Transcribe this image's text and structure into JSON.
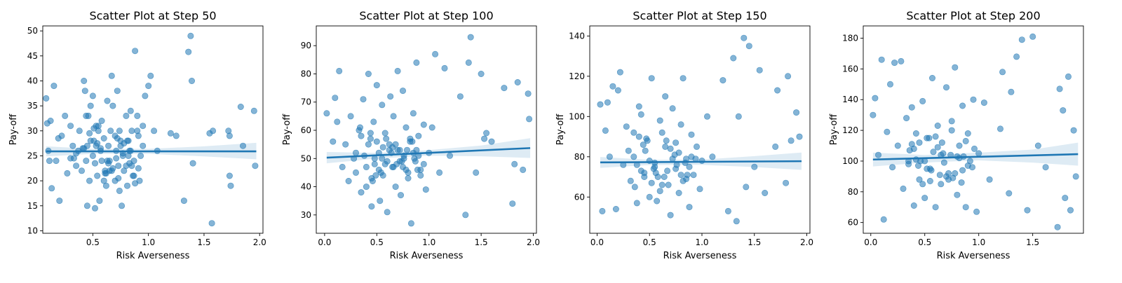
{
  "chart_data": [
    {
      "type": "scatter",
      "title": "Scatter Plot at Step 50",
      "xlabel": "Risk Averseness",
      "ylabel": "Pay-off",
      "xlim": [
        0.05,
        2.03
      ],
      "ylim": [
        9.5,
        51
      ],
      "xticks": [
        0.5,
        1.0,
        1.5,
        2.0
      ],
      "xtick_labels": [
        "0.5",
        "1.0",
        "1.5",
        "2.0"
      ],
      "yticks": [
        10,
        15,
        20,
        25,
        30,
        35,
        40,
        45,
        50
      ],
      "ytick_labels": [
        "10",
        "15",
        "20",
        "25",
        "30",
        "35",
        "40",
        "45",
        "50"
      ],
      "regression": {
        "x": [
          0.08,
          1.97
        ],
        "y": [
          25.9,
          25.9
        ]
      },
      "ci_band": {
        "x": [
          0.08,
          0.5,
          1.0,
          1.5,
          1.97
        ],
        "lower": [
          24.9,
          25.4,
          25.4,
          24.9,
          24.3
        ],
        "upper": [
          26.9,
          26.4,
          26.4,
          26.9,
          27.6
        ]
      },
      "points": {
        "x": [
          0.08,
          0.09,
          0.1,
          0.11,
          0.12,
          0.13,
          0.15,
          0.17,
          0.19,
          0.2,
          0.22,
          0.25,
          0.27,
          0.3,
          0.32,
          0.35,
          0.37,
          0.38,
          0.4,
          0.42,
          0.43,
          0.44,
          0.45,
          0.46,
          0.47,
          0.48,
          0.5,
          0.5,
          0.51,
          0.52,
          0.53,
          0.54,
          0.55,
          0.56,
          0.57,
          0.58,
          0.6,
          0.61,
          0.62,
          0.63,
          0.64,
          0.65,
          0.66,
          0.67,
          0.68,
          0.7,
          0.71,
          0.72,
          0.73,
          0.74,
          0.75,
          0.76,
          0.77,
          0.78,
          0.8,
          0.81,
          0.82,
          0.83,
          0.84,
          0.85,
          0.86,
          0.87,
          0.88,
          0.9,
          0.91,
          0.92,
          0.95,
          0.97,
          1.0,
          1.02,
          1.05,
          1.08,
          1.2,
          1.25,
          1.32,
          1.36,
          1.38,
          1.39,
          1.4,
          1.55,
          1.57,
          1.58,
          1.72,
          1.73,
          1.73,
          1.74,
          1.83,
          1.85,
          1.95,
          1.96,
          0.3,
          0.45,
          0.55,
          0.65,
          0.75,
          0.85,
          0.95,
          0.35,
          0.6,
          0.7,
          0.8,
          0.9,
          0.42,
          0.52,
          0.62,
          0.72,
          0.82,
          0.48,
          0.58,
          0.68,
          0.78,
          0.88,
          0.33,
          0.47,
          0.57,
          0.67,
          0.77,
          0.87,
          0.53,
          0.63,
          0.73,
          0.83,
          0.93,
          0.41,
          0.51,
          0.61,
          0.71,
          0.81,
          0.91,
          0.44,
          0.54,
          0.64,
          0.74,
          0.84
        ],
        "y": [
          36.5,
          31.5,
          26.0,
          24.0,
          32.0,
          18.5,
          39.0,
          24.0,
          28.5,
          16.0,
          29.0,
          33.0,
          21.5,
          31.0,
          27.0,
          23.0,
          26.0,
          30.0,
          22.0,
          40.0,
          38.0,
          24.0,
          15.0,
          33.0,
          20.0,
          35.0,
          37.0,
          25.0,
          28.0,
          14.5,
          31.0,
          21.0,
          30.0,
          16.0,
          26.0,
          32.0,
          28.5,
          22.0,
          19.0,
          36.0,
          27.0,
          24.0,
          30.0,
          41.0,
          35.0,
          20.0,
          26.0,
          38.0,
          23.0,
          30.0,
          27.0,
          15.0,
          25.0,
          22.0,
          33.0,
          19.0,
          28.0,
          26.0,
          34.0,
          30.0,
          21.0,
          24.0,
          46.0,
          33.0,
          29.0,
          20.0,
          31.0,
          37.0,
          39.0,
          41.0,
          30.0,
          26.0,
          29.5,
          29.0,
          16.0,
          45.8,
          49.0,
          40.0,
          23.5,
          29.5,
          11.5,
          30.0,
          30.0,
          29.0,
          21.0,
          19.0,
          34.8,
          27.0,
          34.0,
          23.0,
          24.5,
          27.0,
          31.0,
          22.0,
          28.0,
          23.0,
          27.0,
          25.5,
          20.0,
          29.0,
          23.0,
          30.0,
          26.5,
          23.5,
          21.5,
          28.5,
          25.0,
          28.0,
          24.0,
          22.5,
          27.5,
          19.5,
          24.5,
          29.5,
          26.5,
          22.0,
          25.5,
          21.0,
          27.0,
          24.0,
          20.5,
          23.5,
          25.0,
          26.5,
          30.5,
          21.5,
          24.5,
          28.0,
          22.5,
          33.0,
          27.5,
          23.5,
          18.0,
          26.0
        ]
      }
    },
    {
      "type": "scatter",
      "title": "Scatter Plot at Step 100",
      "xlabel": "Risk Averseness",
      "ylabel": "Pay-off",
      "xlim": [
        -0.08,
        2.03
      ],
      "ylim": [
        23.5,
        97
      ],
      "xticks": [
        0.0,
        0.5,
        1.0,
        1.5,
        2.0
      ],
      "xtick_labels": [
        "0.0",
        "0.5",
        "1.0",
        "1.5",
        "2.0"
      ],
      "yticks": [
        30,
        40,
        50,
        60,
        70,
        80,
        90
      ],
      "ytick_labels": [
        "30",
        "40",
        "50",
        "60",
        "70",
        "80",
        "90"
      ],
      "regression": {
        "x": [
          0.02,
          1.97
        ],
        "y": [
          50.3,
          53.7
        ]
      },
      "ci_band": {
        "x": [
          0.02,
          0.5,
          1.0,
          1.5,
          1.97
        ],
        "lower": [
          48.3,
          50.0,
          51.0,
          50.8,
          50.2
        ],
        "upper": [
          52.3,
          52.0,
          53.0,
          54.6,
          57.2
        ]
      },
      "points": {
        "x": [
          0.02,
          0.08,
          0.1,
          0.12,
          0.14,
          0.17,
          0.2,
          0.23,
          0.25,
          0.28,
          0.3,
          0.33,
          0.35,
          0.37,
          0.4,
          0.42,
          0.44,
          0.45,
          0.47,
          0.48,
          0.5,
          0.52,
          0.53,
          0.55,
          0.56,
          0.58,
          0.6,
          0.62,
          0.63,
          0.65,
          0.66,
          0.68,
          0.7,
          0.72,
          0.73,
          0.75,
          0.76,
          0.78,
          0.8,
          0.82,
          0.83,
          0.85,
          0.87,
          0.88,
          0.9,
          0.92,
          0.95,
          0.97,
          1.0,
          1.03,
          1.06,
          1.1,
          1.15,
          1.2,
          1.3,
          1.35,
          1.38,
          1.4,
          1.45,
          1.5,
          1.53,
          1.55,
          1.6,
          1.72,
          1.8,
          1.82,
          1.85,
          1.9,
          1.95,
          1.96,
          0.3,
          0.4,
          0.5,
          0.6,
          0.7,
          0.8,
          0.9,
          0.35,
          0.45,
          0.55,
          0.65,
          0.75,
          0.85,
          0.95,
          0.42,
          0.52,
          0.62,
          0.72,
          0.82,
          0.92,
          0.38,
          0.48,
          0.58,
          0.68,
          0.78,
          0.88,
          0.44,
          0.54,
          0.64,
          0.74,
          0.84,
          0.46,
          0.56,
          0.66,
          0.76,
          0.86,
          0.34,
          0.49,
          0.59,
          0.69,
          0.79,
          0.89
        ],
        "y": [
          66.0,
          56.0,
          71.5,
          63.0,
          81.0,
          47.0,
          55.0,
          42.0,
          65.0,
          50.0,
          45.0,
          60.0,
          38.0,
          71.0,
          40.0,
          80.0,
          57.0,
          33.0,
          63.0,
          48.0,
          76.0,
          52.0,
          35.0,
          69.0,
          44.0,
          59.0,
          31.0,
          55.0,
          72.0,
          47.0,
          65.0,
          40.0,
          81.0,
          53.0,
          37.0,
          74.0,
          50.0,
          61.0,
          43.0,
          56.0,
          27.0,
          66.0,
          49.0,
          84.0,
          58.0,
          46.0,
          62.0,
          39.0,
          52.0,
          61.0,
          87.0,
          45.0,
          82.0,
          51.0,
          72.0,
          30.0,
          84.0,
          93.0,
          45.0,
          80.0,
          57.0,
          59.0,
          56.0,
          75.0,
          34.0,
          48.0,
          77.0,
          46.0,
          73.0,
          64.0,
          52.0,
          47.0,
          56.0,
          49.0,
          53.0,
          45.0,
          51.0,
          58.0,
          43.0,
          50.0,
          54.0,
          47.0,
          52.0,
          48.0,
          55.0,
          46.0,
          53.0,
          49.0,
          57.0,
          44.0,
          51.0,
          50.0,
          48.0,
          55.0,
          46.0,
          53.0,
          59.0,
          45.0,
          52.0,
          49.0,
          56.0,
          42.0,
          54.0,
          47.0,
          51.0,
          50.0,
          61.0,
          44.0,
          57.0,
          48.0,
          53.0,
          46.0
        ]
      }
    },
    {
      "type": "scatter",
      "title": "Scatter Plot at Step 150",
      "xlabel": "Risk Averseness",
      "ylabel": "Pay-off",
      "xlim": [
        -0.07,
        2.03
      ],
      "ylim": [
        42,
        145
      ],
      "xticks": [
        0.0,
        0.5,
        1.0,
        1.5,
        2.0
      ],
      "xtick_labels": [
        "0.0",
        "0.5",
        "1.0",
        "1.5",
        "2.0"
      ],
      "yticks": [
        60,
        80,
        100,
        120,
        140
      ],
      "ytick_labels": [
        "60",
        "80",
        "100",
        "120",
        "140"
      ],
      "regression": {
        "x": [
          0.03,
          1.95
        ],
        "y": [
          77.2,
          77.8
        ]
      },
      "ci_band": {
        "x": [
          0.03,
          0.5,
          1.0,
          1.5,
          1.95
        ],
        "lower": [
          74.5,
          75.9,
          76.0,
          74.9,
          73.5
        ],
        "upper": [
          79.9,
          78.5,
          78.6,
          80.3,
          82.1
        ]
      },
      "points": {
        "x": [
          0.03,
          0.05,
          0.08,
          0.1,
          0.12,
          0.15,
          0.18,
          0.2,
          0.22,
          0.25,
          0.28,
          0.3,
          0.32,
          0.35,
          0.38,
          0.4,
          0.42,
          0.45,
          0.47,
          0.5,
          0.52,
          0.55,
          0.57,
          0.6,
          0.62,
          0.65,
          0.67,
          0.7,
          0.72,
          0.75,
          0.78,
          0.8,
          0.82,
          0.85,
          0.88,
          0.9,
          0.92,
          0.95,
          0.98,
          1.0,
          1.05,
          1.1,
          1.2,
          1.25,
          1.3,
          1.33,
          1.35,
          1.4,
          1.42,
          1.45,
          1.5,
          1.55,
          1.6,
          1.7,
          1.72,
          1.8,
          1.82,
          1.85,
          1.9,
          1.93,
          0.35,
          0.45,
          0.55,
          0.65,
          0.75,
          0.85,
          0.4,
          0.5,
          0.6,
          0.7,
          0.8,
          0.9,
          0.38,
          0.48,
          0.58,
          0.68,
          0.78,
          0.88,
          0.42,
          0.52,
          0.62,
          0.72,
          0.82,
          0.44,
          0.54,
          0.64,
          0.74,
          0.84,
          0.36,
          0.46,
          0.56,
          0.66,
          0.76,
          0.86,
          0.94
        ],
        "y": [
          106.0,
          53.0,
          93.0,
          107.0,
          80.0,
          115.0,
          54.0,
          113.0,
          122.0,
          76.0,
          95.0,
          83.0,
          68.0,
          92.0,
          57.0,
          105.0,
          101.0,
          70.0,
          89.0,
          60.0,
          119.0,
          75.0,
          58.0,
          98.0,
          66.0,
          110.0,
          73.0,
          51.0,
          104.0,
          87.0,
          62.0,
          96.0,
          119.0,
          79.0,
          55.0,
          91.0,
          71.0,
          85.0,
          64.0,
          78.0,
          100.0,
          80.0,
          118.0,
          53.0,
          129.0,
          48.0,
          100.0,
          139.0,
          65.0,
          135.0,
          75.0,
          123.0,
          62.0,
          85.0,
          113.0,
          67.0,
          120.0,
          88.0,
          102.0,
          90.0,
          80.0,
          72.0,
          77.0,
          85.0,
          74.0,
          69.0,
          90.0,
          78.0,
          63.0,
          84.0,
          71.0,
          80.0,
          76.0,
          88.0,
          70.0,
          66.0,
          82.0,
          75.0,
          73.0,
          67.0,
          92.0,
          79.0,
          68.0,
          86.0,
          74.0,
          70.0,
          81.0,
          77.0,
          65.0,
          83.0,
          72.0,
          88.0,
          76.0,
          71.0,
          79.0
        ]
      }
    },
    {
      "type": "scatter",
      "title": "Scatter Plot at Step 200",
      "xlabel": "Risk Averseness",
      "ylabel": "Pay-off",
      "xlim": [
        -0.07,
        1.97
      ],
      "ylim": [
        53,
        188
      ],
      "xticks": [
        0.0,
        0.5,
        1.0,
        1.5
      ],
      "xtick_labels": [
        "0.0",
        "0.5",
        "1.0",
        "1.5"
      ],
      "yticks": [
        60,
        80,
        100,
        120,
        140,
        160,
        180
      ],
      "ytick_labels": [
        "60",
        "80",
        "100",
        "120",
        "140",
        "160",
        "180"
      ],
      "regression": {
        "x": [
          0.02,
          1.92
        ],
        "y": [
          101.0,
          104.5
        ]
      },
      "ci_band": {
        "x": [
          0.02,
          0.5,
          1.0,
          1.5,
          1.92
        ],
        "lower": [
          96.5,
          99.0,
          100.5,
          99.0,
          97.0
        ],
        "upper": [
          105.5,
          104.0,
          105.5,
          107.5,
          112.0
        ]
      },
      "points": {
        "x": [
          0.02,
          0.04,
          0.07,
          0.1,
          0.12,
          0.15,
          0.18,
          0.2,
          0.22,
          0.25,
          0.28,
          0.3,
          0.33,
          0.35,
          0.38,
          0.4,
          0.42,
          0.45,
          0.48,
          0.5,
          0.52,
          0.55,
          0.57,
          0.6,
          0.62,
          0.65,
          0.67,
          0.7,
          0.72,
          0.75,
          0.78,
          0.8,
          0.82,
          0.85,
          0.88,
          0.9,
          0.92,
          0.95,
          0.98,
          1.0,
          1.05,
          1.1,
          1.2,
          1.22,
          1.28,
          1.3,
          1.35,
          1.4,
          1.45,
          1.5,
          1.55,
          1.62,
          1.73,
          1.75,
          1.78,
          1.8,
          1.83,
          1.85,
          1.88,
          1.9,
          0.35,
          0.45,
          0.55,
          0.65,
          0.75,
          0.85,
          0.4,
          0.5,
          0.6,
          0.7,
          0.8,
          0.9,
          0.38,
          0.48,
          0.58,
          0.68,
          0.78,
          0.88,
          0.42,
          0.52,
          0.62,
          0.72,
          0.82,
          0.44,
          0.54,
          0.64,
          0.74,
          0.84,
          0.36,
          0.46,
          0.56,
          0.66,
          0.76,
          0.86,
          0.94,
          0.96
        ],
        "y": [
          130.0,
          141.0,
          104.0,
          166.0,
          62.0,
          119.0,
          150.0,
          96.0,
          164.0,
          110.0,
          165.0,
          82.0,
          128.0,
          100.0,
          135.0,
          71.0,
          118.0,
          88.0,
          139.0,
          76.0,
          115.0,
          95.0,
          154.0,
          70.0,
          123.0,
          85.0,
          105.0,
          148.0,
          92.0,
          126.0,
          161.0,
          78.0,
          110.0,
          136.0,
          70.0,
          118.0,
          100.0,
          140.0,
          67.0,
          105.0,
          138.0,
          88.0,
          121.0,
          158.0,
          79.0,
          145.0,
          168.0,
          179.0,
          68.0,
          181.0,
          110.0,
          96.0,
          57.0,
          147.0,
          133.0,
          76.0,
          155.0,
          68.0,
          120.0,
          90.0,
          98.0,
          112.0,
          87.0,
          104.0,
          120.0,
          94.0,
          108.0,
          100.0,
          116.0,
          90.0,
          103.0,
          97.0,
          111.0,
          85.0,
          106.0,
          99.0,
          92.0,
          113.0,
          101.0,
          95.0,
          109.0,
          88.0,
          102.0,
          97.0,
          115.0,
          91.0,
          104.0,
          86.0,
          107.0,
          100.0,
          94.0,
          112.0,
          89.0,
          103.0,
          96.0,
          108.0
        ]
      }
    }
  ]
}
